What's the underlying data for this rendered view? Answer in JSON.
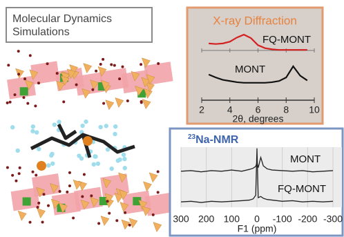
{
  "md_panel": {
    "title": "Molecular Dynamics Simulations"
  },
  "chart_data": [
    {
      "type": "line",
      "title": "X-ray Diffraction",
      "x_label": "2θ, degrees",
      "x": [
        2.5,
        3,
        3.5,
        4,
        4.5,
        5,
        5.5,
        6,
        6.5,
        7,
        7.5,
        8,
        8.5,
        9,
        9.5
      ],
      "series": [
        {
          "name": "FQ-MONT",
          "color": "#d42020",
          "values": [
            7.9,
            7.8,
            7.9,
            8.2,
            8.9,
            9.4,
            8.8,
            7.6,
            7.1,
            6.9,
            6.8,
            6.8,
            6.8,
            6.8,
            6.8
          ]
        },
        {
          "name": "MONT",
          "color": "#111111",
          "values": [
            2.6,
            2.1,
            1.7,
            1.5,
            1.3,
            1.2,
            1.2,
            1.2,
            1.2,
            1.3,
            1.5,
            2.1,
            4.0,
            2.4,
            1.6
          ]
        }
      ],
      "xlim": [
        2,
        10
      ],
      "xticks": [
        2,
        4,
        6,
        8,
        10
      ],
      "ylim": [
        0,
        10
      ],
      "grid": false
    },
    {
      "type": "line",
      "title_sup": "23",
      "title": "Na-NMR",
      "x_label": "F1 (ppm)",
      "x": [
        300,
        260,
        220,
        180,
        140,
        100,
        60,
        30,
        15,
        5,
        0,
        -5,
        -15,
        -25,
        -40,
        -60,
        -100,
        -140,
        -180,
        -220,
        -260,
        -300
      ],
      "series": [
        {
          "name": "MONT",
          "color": "#222222",
          "values": [
            6.0,
            6.1,
            5.9,
            6.1,
            6.0,
            6.2,
            6.0,
            6.3,
            6.5,
            6.8,
            7.4,
            6.6,
            8.3,
            6.9,
            6.4,
            6.2,
            6.1,
            6.0,
            6.1,
            5.9,
            6.0,
            6.1
          ]
        },
        {
          "name": "FQ-MONT",
          "color": "#222222",
          "values": [
            0.9,
            1.0,
            0.8,
            1.0,
            0.9,
            1.0,
            1.1,
            1.2,
            1.4,
            2.0,
            9.8,
            1.6,
            1.8,
            1.5,
            1.3,
            1.2,
            1.0,
            1.1,
            0.9,
            1.0,
            0.9,
            1.0
          ]
        }
      ],
      "xlim": [
        300,
        -300
      ],
      "xticks": [
        300,
        200,
        100,
        0,
        -100,
        -200,
        -300
      ],
      "ylim": [
        0,
        10
      ],
      "grid": true
    }
  ]
}
